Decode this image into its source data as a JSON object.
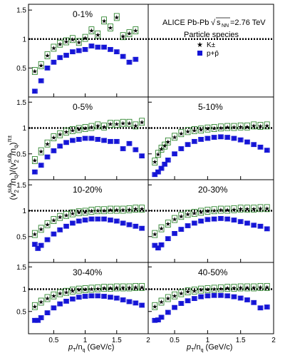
{
  "figure": {
    "legend": {
      "experiment": "ALICE Pb-Pb",
      "energy_prefix": "s",
      "energy_subscript": "NN",
      "energy_value": "=2.76 TeV",
      "title": "Particle species",
      "entries": [
        "K±",
        "p+p̄"
      ]
    },
    "y_axis_label": {
      "main": "(v",
      "sup1": "sub",
      "sub1": "2",
      "mid": "/n",
      "sub2": "q",
      "mid2": ")/(v",
      "sup3": "sub",
      "sub3": "2",
      "mid3": "/n",
      "sub4": "q",
      "end": ")",
      "sup_end": "π±"
    },
    "x_axis_label": {
      "p": "p",
      "sub": "T",
      "mid": "/n",
      "sub2": "q",
      "unit": " (GeV/c)"
    },
    "colors": {
      "kaon": "#1a7a1a",
      "proton": "#1414d6",
      "reference_line": "#000000"
    }
  },
  "chart_data": [
    {
      "type": "scatter",
      "title": "0-1%",
      "x_ticks": [
        "0.5",
        "1",
        "1.5",
        "2"
      ],
      "y_ticks": [
        "0.5",
        "1",
        "1.5"
      ],
      "xlim": [
        0.1,
        2.0
      ],
      "ylim": [
        0.0,
        1.6
      ],
      "reference_line": 1,
      "series": [
        {
          "name": "K±",
          "marker": "star",
          "x": [
            0.2,
            0.3,
            0.4,
            0.5,
            0.6,
            0.7,
            0.8,
            0.9,
            1.0,
            1.1,
            1.2,
            1.3,
            1.4,
            1.5,
            1.6,
            1.7,
            1.8
          ],
          "y": [
            0.45,
            0.55,
            0.72,
            0.85,
            0.92,
            0.96,
            1.0,
            0.95,
            1.02,
            1.15,
            1.08,
            1.32,
            1.2,
            1.38,
            1.05,
            1.1,
            1.15
          ]
        },
        {
          "name": "p+p̄",
          "marker": "square",
          "x": [
            0.2,
            0.3,
            0.4,
            0.5,
            0.6,
            0.7,
            0.8,
            0.9,
            1.0,
            1.1,
            1.2,
            1.3,
            1.4,
            1.5,
            1.6,
            1.7,
            1.8
          ],
          "y": [
            0.1,
            0.28,
            0.5,
            0.6,
            0.68,
            0.72,
            0.78,
            0.8,
            0.82,
            0.88,
            0.86,
            0.86,
            0.82,
            0.78,
            0.7,
            0.6,
            0.65
          ]
        }
      ]
    },
    {
      "type": "scatter",
      "title": "0-5%",
      "x_ticks": [
        "0.5",
        "1",
        "1.5",
        "2"
      ],
      "y_ticks": [
        "0.5",
        "1",
        "1.5"
      ],
      "xlim": [
        0.1,
        2.0
      ],
      "ylim": [
        0.0,
        1.6
      ],
      "reference_line": 1,
      "series": [
        {
          "name": "K±",
          "marker": "star",
          "x": [
            0.2,
            0.3,
            0.4,
            0.5,
            0.6,
            0.7,
            0.8,
            0.9,
            1.0,
            1.1,
            1.2,
            1.3,
            1.4,
            1.5,
            1.6,
            1.7,
            1.8,
            1.9
          ],
          "y": [
            0.38,
            0.55,
            0.7,
            0.82,
            0.88,
            0.93,
            0.96,
            0.98,
            1.0,
            1.02,
            1.05,
            1.03,
            1.08,
            1.08,
            1.1,
            1.1,
            1.05,
            1.12
          ]
        },
        {
          "name": "p+p̄",
          "marker": "square",
          "x": [
            0.2,
            0.3,
            0.4,
            0.5,
            0.6,
            0.7,
            0.8,
            0.9,
            1.0,
            1.1,
            1.2,
            1.3,
            1.4,
            1.5,
            1.6,
            1.7,
            1.8,
            1.9
          ],
          "y": [
            0.15,
            0.28,
            0.44,
            0.56,
            0.65,
            0.72,
            0.76,
            0.78,
            0.8,
            0.8,
            0.78,
            0.76,
            0.74,
            0.74,
            0.6,
            0.7,
            0.58,
            0.46
          ]
        }
      ]
    },
    {
      "type": "scatter",
      "title": "5-10%",
      "x_ticks": [
        "0.5",
        "1",
        "1.5",
        "2"
      ],
      "y_ticks": [
        "0.5",
        "1",
        "1.5"
      ],
      "xlim": [
        0.1,
        2.0
      ],
      "ylim": [
        0.0,
        1.6
      ],
      "reference_line": 1,
      "series": [
        {
          "name": "K±",
          "marker": "star",
          "x": [
            0.2,
            0.25,
            0.3,
            0.35,
            0.4,
            0.5,
            0.6,
            0.7,
            0.8,
            0.9,
            1.0,
            1.1,
            1.2,
            1.3,
            1.4,
            1.5,
            1.6,
            1.7,
            1.8,
            1.9
          ],
          "y": [
            0.35,
            0.5,
            0.6,
            0.66,
            0.74,
            0.83,
            0.9,
            0.94,
            0.96,
            0.97,
            0.99,
            1.0,
            1.01,
            1.02,
            1.02,
            1.03,
            1.03,
            1.05,
            1.04,
            1.05
          ]
        },
        {
          "name": "p+p̄",
          "marker": "square",
          "x": [
            0.2,
            0.25,
            0.3,
            0.35,
            0.4,
            0.5,
            0.6,
            0.7,
            0.8,
            0.9,
            1.0,
            1.1,
            1.2,
            1.3,
            1.4,
            1.5,
            1.6,
            1.7,
            1.8,
            1.9
          ],
          "y": [
            0.1,
            0.15,
            0.22,
            0.3,
            0.38,
            0.5,
            0.6,
            0.68,
            0.74,
            0.78,
            0.8,
            0.82,
            0.83,
            0.82,
            0.8,
            0.77,
            0.73,
            0.68,
            0.63,
            0.57
          ]
        }
      ]
    },
    {
      "type": "scatter",
      "title": "10-20%",
      "x_ticks": [
        "0.5",
        "1",
        "1.5",
        "2"
      ],
      "y_ticks": [
        "0.5",
        "1",
        "1.5"
      ],
      "xlim": [
        0.1,
        2.0
      ],
      "ylim": [
        0.0,
        1.6
      ],
      "reference_line": 1,
      "series": [
        {
          "name": "K±",
          "marker": "star",
          "x": [
            0.2,
            0.3,
            0.4,
            0.5,
            0.6,
            0.7,
            0.8,
            0.9,
            1.0,
            1.1,
            1.2,
            1.3,
            1.4,
            1.5,
            1.6,
            1.7,
            1.8,
            1.9
          ],
          "y": [
            0.55,
            0.65,
            0.74,
            0.82,
            0.88,
            0.92,
            0.95,
            0.97,
            0.98,
            1.0,
            1.01,
            1.01,
            1.02,
            1.02,
            1.02,
            1.03,
            1.04,
            1.04
          ]
        },
        {
          "name": "p+p̄",
          "marker": "square",
          "x": [
            0.2,
            0.25,
            0.3,
            0.4,
            0.5,
            0.6,
            0.7,
            0.8,
            0.9,
            1.0,
            1.1,
            1.2,
            1.3,
            1.4,
            1.5,
            1.6,
            1.7,
            1.8,
            1.9
          ],
          "y": [
            0.35,
            0.27,
            0.33,
            0.44,
            0.55,
            0.63,
            0.7,
            0.76,
            0.8,
            0.82,
            0.84,
            0.84,
            0.84,
            0.82,
            0.8,
            0.76,
            0.73,
            0.7,
            0.66
          ]
        }
      ]
    },
    {
      "type": "scatter",
      "title": "20-30%",
      "x_ticks": [
        "0.5",
        "1",
        "1.5",
        "2"
      ],
      "y_ticks": [
        "0.5",
        "1",
        "1.5"
      ],
      "xlim": [
        0.1,
        2.0
      ],
      "ylim": [
        0.0,
        1.6
      ],
      "reference_line": 1,
      "series": [
        {
          "name": "K±",
          "marker": "star",
          "x": [
            0.2,
            0.3,
            0.4,
            0.5,
            0.6,
            0.7,
            0.8,
            0.9,
            1.0,
            1.1,
            1.2,
            1.3,
            1.4,
            1.5,
            1.6,
            1.7,
            1.8,
            1.9
          ],
          "y": [
            0.55,
            0.66,
            0.75,
            0.84,
            0.9,
            0.94,
            0.96,
            0.98,
            1.0,
            1.01,
            1.02,
            1.02,
            1.03,
            1.04,
            1.04,
            1.04,
            1.05,
            1.05
          ]
        },
        {
          "name": "p+p̄",
          "marker": "square",
          "x": [
            0.2,
            0.25,
            0.3,
            0.4,
            0.5,
            0.6,
            0.7,
            0.8,
            0.9,
            1.0,
            1.1,
            1.2,
            1.3,
            1.4,
            1.5,
            1.6,
            1.7,
            1.8,
            1.9
          ],
          "y": [
            0.33,
            0.28,
            0.34,
            0.46,
            0.56,
            0.64,
            0.71,
            0.76,
            0.8,
            0.83,
            0.84,
            0.85,
            0.84,
            0.82,
            0.79,
            0.76,
            0.72,
            0.7,
            0.65
          ]
        }
      ]
    },
    {
      "type": "scatter",
      "title": "30-40%",
      "x_ticks": [
        "0.5",
        "1",
        "1.5",
        "2"
      ],
      "y_ticks": [
        "0.5",
        "1",
        "1.5"
      ],
      "xlim": [
        0.1,
        2.0
      ],
      "ylim": [
        0.0,
        1.6
      ],
      "reference_line": 1,
      "series": [
        {
          "name": "K±",
          "marker": "star",
          "x": [
            0.2,
            0.3,
            0.4,
            0.5,
            0.6,
            0.7,
            0.8,
            0.9,
            1.0,
            1.1,
            1.2,
            1.3,
            1.4,
            1.5,
            1.6,
            1.7,
            1.8,
            1.9
          ],
          "y": [
            0.62,
            0.72,
            0.8,
            0.86,
            0.91,
            0.94,
            0.97,
            0.99,
            1.0,
            1.01,
            1.02,
            1.03,
            1.03,
            1.04,
            1.04,
            1.04,
            1.05,
            1.05
          ]
        },
        {
          "name": "p+p̄",
          "marker": "square",
          "x": [
            0.2,
            0.25,
            0.3,
            0.4,
            0.5,
            0.6,
            0.7,
            0.8,
            0.9,
            1.0,
            1.1,
            1.2,
            1.3,
            1.4,
            1.5,
            1.6,
            1.7,
            1.8,
            1.9
          ],
          "y": [
            0.3,
            0.3,
            0.36,
            0.47,
            0.58,
            0.67,
            0.73,
            0.78,
            0.82,
            0.84,
            0.85,
            0.85,
            0.84,
            0.82,
            0.8,
            0.76,
            0.72,
            0.69,
            0.64
          ]
        }
      ]
    },
    {
      "type": "scatter",
      "title": "40-50%",
      "x_ticks": [
        "0.5",
        "1",
        "1.5",
        "2"
      ],
      "y_ticks": [
        "0.5",
        "1",
        "1.5"
      ],
      "xlim": [
        0.1,
        2.0
      ],
      "ylim": [
        0.0,
        1.6
      ],
      "reference_line": 1,
      "series": [
        {
          "name": "K±",
          "marker": "star",
          "x": [
            0.2,
            0.3,
            0.4,
            0.5,
            0.6,
            0.7,
            0.8,
            0.9,
            1.0,
            1.1,
            1.2,
            1.3,
            1.4,
            1.5,
            1.6,
            1.7,
            1.8,
            1.9
          ],
          "y": [
            0.62,
            0.72,
            0.8,
            0.86,
            0.91,
            0.95,
            0.97,
            0.99,
            1.0,
            1.01,
            1.02,
            1.03,
            1.03,
            1.04,
            1.04,
            1.04,
            1.05,
            1.05
          ]
        },
        {
          "name": "p+p̄",
          "marker": "square",
          "x": [
            0.2,
            0.25,
            0.3,
            0.4,
            0.5,
            0.6,
            0.7,
            0.8,
            0.9,
            1.0,
            1.1,
            1.2,
            1.3,
            1.4,
            1.5,
            1.6,
            1.7,
            1.8,
            1.9
          ],
          "y": [
            0.3,
            0.31,
            0.37,
            0.48,
            0.59,
            0.68,
            0.74,
            0.79,
            0.83,
            0.85,
            0.86,
            0.86,
            0.85,
            0.83,
            0.8,
            0.76,
            0.7,
            0.58,
            0.6
          ]
        }
      ]
    }
  ]
}
